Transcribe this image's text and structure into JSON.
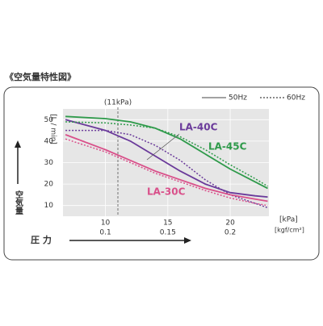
{
  "chart_data": {
    "type": "line",
    "title": "《空気量特性図》",
    "y_label": "空気量",
    "x_label": "圧 力",
    "y_unit": "[L / min]",
    "x_unit": "[kPa]",
    "x2_unit": "[kgf/cm²]",
    "legend": [
      "50Hz",
      "60Hz"
    ],
    "annotation": {
      "label": "(11kPa)",
      "x": 11
    },
    "x": [
      6.8,
      10,
      12,
      14,
      16,
      18,
      20,
      22,
      23
    ],
    "xlim": [
      6.6,
      23.1
    ],
    "xticks": [
      10,
      15,
      20
    ],
    "x2lim": [
      0.066,
      0.231
    ],
    "x2ticks": [
      0.1,
      0.15,
      0.2
    ],
    "ylim": [
      5,
      55
    ],
    "yticks": [
      10,
      20,
      30,
      40,
      50
    ],
    "grid": true,
    "series": [
      {
        "name": "LA-40C",
        "color": "#6a3a9a",
        "values_50hz": [
          50,
          45,
          40,
          33,
          26,
          20,
          16,
          14.5,
          14
        ],
        "values_60hz": [
          45,
          45,
          43,
          38,
          31,
          22,
          15,
          11,
          9
        ]
      },
      {
        "name": "LA-45C",
        "color": "#2e9a4a",
        "values_50hz": [
          51.5,
          50.5,
          49,
          46,
          41,
          34,
          27,
          21,
          18
        ],
        "values_60hz": [
          49,
          48.5,
          47.5,
          46,
          42,
          36,
          29,
          22.5,
          19
        ]
      },
      {
        "name": "LA-30C",
        "color": "#d9508a",
        "values_50hz": [
          43,
          36,
          31,
          26,
          22,
          18,
          15,
          13,
          12
        ],
        "values_60hz": [
          41,
          35,
          30,
          25,
          21,
          17,
          13.5,
          11,
          10
        ]
      }
    ]
  }
}
